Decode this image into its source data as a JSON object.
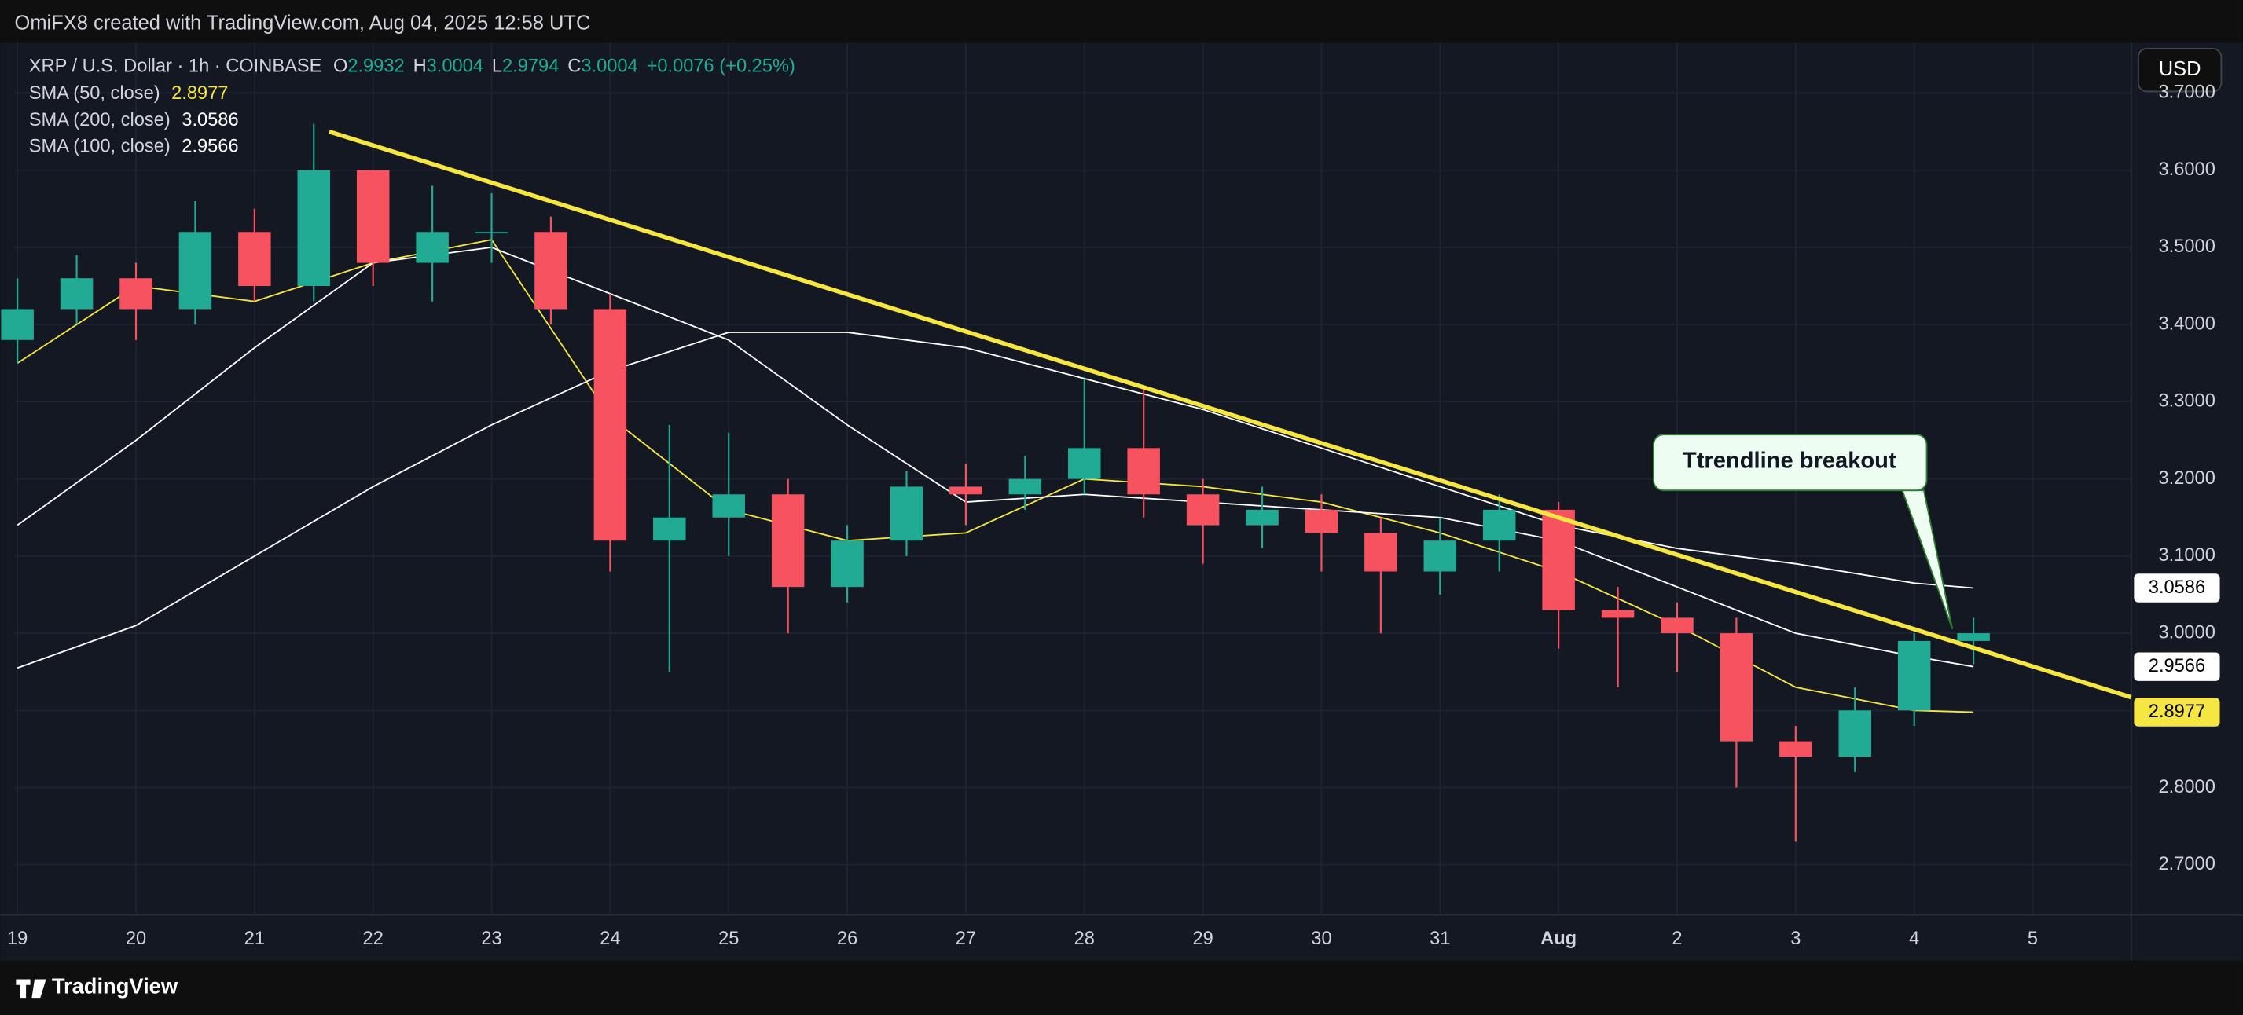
{
  "chart_data": {
    "type": "candlestick",
    "header": "OmiFX8 created with TradingView.com, Aug 04, 2025 12:58 UTC",
    "title": "XRP / U.S. Dollar · 1h · COINBASE",
    "quote": [
      {
        "label": "O",
        "value": 2.9932
      },
      {
        "label": "H",
        "value": 3.0004
      },
      {
        "label": "L",
        "value": 2.9794
      },
      {
        "label": "C",
        "value": 3.0004
      }
    ],
    "change_label": "+0.0076 (+0.25%)",
    "currency": "USD",
    "brand": "TradingView",
    "annotation": "Ttrendline breakout",
    "up_color": "#22ab94",
    "down_color": "#f7525f",
    "grid": true,
    "x": [
      0,
      0.5,
      1,
      1.5,
      2,
      2.5,
      3,
      3.5,
      4,
      4.5,
      5,
      5.5,
      6,
      6.5,
      7,
      7.5,
      8,
      8.5,
      9,
      9.5,
      10,
      10.5,
      11,
      11.5,
      12,
      12.5,
      13,
      13.5,
      14,
      14.5,
      15,
      15.5,
      16,
      16.5
    ],
    "open": [
      3.38,
      3.42,
      3.46,
      3.42,
      3.52,
      3.45,
      3.6,
      3.48,
      3.52,
      3.52,
      3.42,
      3.12,
      3.15,
      3.18,
      3.06,
      3.12,
      3.19,
      3.18,
      3.2,
      3.24,
      3.18,
      3.14,
      3.16,
      3.13,
      3.08,
      3.12,
      3.16,
      3.03,
      3.02,
      3.0,
      2.86,
      2.84,
      2.9,
      2.99
    ],
    "high": [
      3.46,
      3.49,
      3.48,
      3.56,
      3.55,
      3.66,
      3.6,
      3.58,
      3.57,
      3.54,
      3.44,
      3.27,
      3.26,
      3.2,
      3.14,
      3.21,
      3.22,
      3.23,
      3.33,
      3.32,
      3.2,
      3.19,
      3.18,
      3.15,
      3.15,
      3.18,
      3.17,
      3.06,
      3.04,
      3.02,
      2.88,
      2.93,
      3.0,
      3.02
    ],
    "low": [
      3.35,
      3.4,
      3.38,
      3.4,
      3.43,
      3.43,
      3.45,
      3.43,
      3.48,
      3.4,
      3.08,
      2.95,
      3.1,
      3.0,
      3.04,
      3.1,
      3.14,
      3.16,
      3.18,
      3.15,
      3.09,
      3.11,
      3.08,
      3.0,
      3.05,
      3.08,
      2.98,
      2.93,
      2.95,
      2.8,
      2.73,
      2.82,
      2.88,
      2.96
    ],
    "close": [
      3.42,
      3.46,
      3.42,
      3.52,
      3.45,
      3.6,
      3.48,
      3.52,
      3.52,
      3.42,
      3.12,
      3.15,
      3.18,
      3.06,
      3.12,
      3.19,
      3.18,
      3.2,
      3.24,
      3.18,
      3.14,
      3.16,
      3.13,
      3.08,
      3.12,
      3.16,
      3.03,
      3.02,
      3.0,
      2.86,
      2.84,
      2.9,
      2.99,
      3.0
    ],
    "overlays": [
      {
        "name": "SMA (50, close)",
        "color": "#f5e642",
        "tag_text": "#000000",
        "x": [
          0,
          1,
          2,
          3,
          4,
          5,
          6,
          7,
          8,
          9,
          10,
          11,
          12,
          13,
          14,
          15,
          16,
          16.5
        ],
        "values": [
          3.35,
          3.45,
          3.43,
          3.48,
          3.51,
          3.28,
          3.16,
          3.12,
          3.13,
          3.2,
          3.19,
          3.17,
          3.13,
          3.08,
          3.01,
          2.93,
          2.9,
          2.8977
        ]
      },
      {
        "name": "SMA (200, close)",
        "color": "#ffffff",
        "tag_text": "#000000",
        "x": [
          0,
          1,
          2,
          3,
          4,
          5,
          6,
          7,
          8,
          9,
          10,
          11,
          12,
          13,
          14,
          15,
          16,
          16.5
        ],
        "values": [
          2.955,
          3.01,
          3.1,
          3.19,
          3.27,
          3.34,
          3.39,
          3.39,
          3.37,
          3.33,
          3.29,
          3.24,
          3.19,
          3.14,
          3.11,
          3.09,
          3.065,
          3.0586
        ]
      },
      {
        "name": "SMA (100, close)",
        "color": "#ffffff",
        "tag_text": "#000000",
        "x": [
          0,
          1,
          2,
          3,
          4,
          5,
          6,
          7,
          8,
          9,
          10,
          11,
          12,
          13,
          14,
          15,
          16,
          16.5
        ],
        "values": [
          3.14,
          3.25,
          3.37,
          3.48,
          3.5,
          3.44,
          3.38,
          3.27,
          3.17,
          3.18,
          3.17,
          3.16,
          3.15,
          3.12,
          3.06,
          3.0,
          2.97,
          2.9566
        ]
      }
    ],
    "trendline": {
      "color": "#f5e642",
      "x": [
        2.63,
        17.83
      ],
      "y": [
        3.65,
        2.917
      ]
    },
    "xlim": [
      -0.024,
      17.83
    ],
    "ylim": [
      2.635,
      3.765
    ],
    "xticks": [
      {
        "value": 0,
        "label": "19"
      },
      {
        "value": 1,
        "label": "20"
      },
      {
        "value": 2,
        "label": "21"
      },
      {
        "value": 3,
        "label": "22"
      },
      {
        "value": 4,
        "label": "23"
      },
      {
        "value": 5,
        "label": "24"
      },
      {
        "value": 6,
        "label": "25"
      },
      {
        "value": 7,
        "label": "26"
      },
      {
        "value": 8,
        "label": "27"
      },
      {
        "value": 9,
        "label": "28"
      },
      {
        "value": 10,
        "label": "29"
      },
      {
        "value": 11,
        "label": "30"
      },
      {
        "value": 12,
        "label": "31"
      },
      {
        "value": 13,
        "label": "Aug"
      },
      {
        "value": 14,
        "label": "2"
      },
      {
        "value": 15,
        "label": "3"
      },
      {
        "value": 16,
        "label": "4"
      },
      {
        "value": 17,
        "label": "5"
      }
    ],
    "yticks": [
      {
        "value": 2.7,
        "label": "2.7000"
      },
      {
        "value": 2.8,
        "label": "2.8000"
      },
      {
        "value": 2.9,
        "label": "2.9000"
      },
      {
        "value": 3.0,
        "label": "3.0000"
      },
      {
        "value": 3.1,
        "label": "3.1000"
      },
      {
        "value": 3.2,
        "label": "3.2000"
      },
      {
        "value": 3.3,
        "label": "3.3000"
      },
      {
        "value": 3.4,
        "label": "3.4000"
      },
      {
        "value": 3.5,
        "label": "3.5000"
      },
      {
        "value": 3.6,
        "label": "3.6000"
      },
      {
        "value": 3.7,
        "label": "3.7000"
      }
    ]
  }
}
